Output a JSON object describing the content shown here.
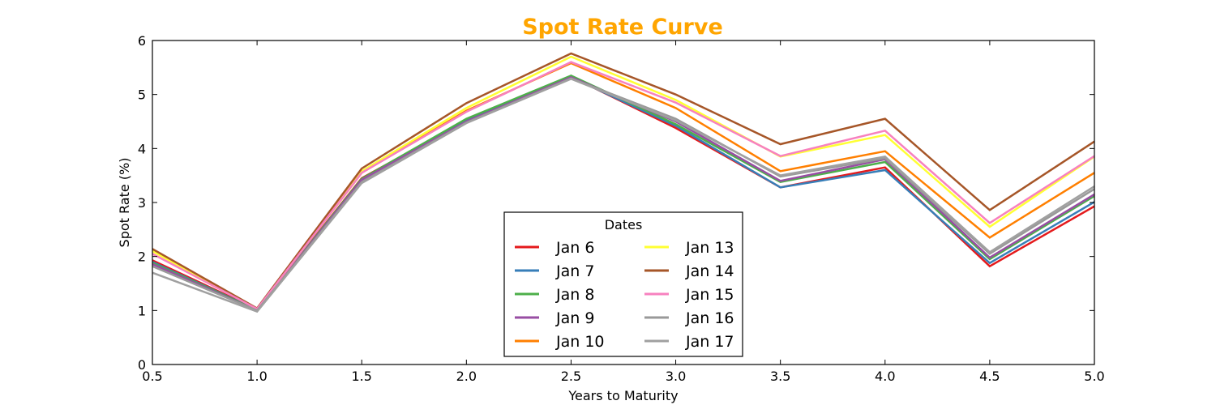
{
  "chart_data": {
    "type": "line",
    "title": "Spot Rate Curve",
    "title_color": "#FFA500",
    "xlabel": "Years to Maturity",
    "ylabel": "Spot Rate (%)",
    "xlim": [
      0.5,
      5.0
    ],
    "ylim": [
      0,
      6
    ],
    "xticks": [
      "0.5",
      "1.0",
      "1.5",
      "2.0",
      "2.5",
      "3.0",
      "3.5",
      "4.0",
      "4.5",
      "5.0"
    ],
    "yticks": [
      "0",
      "1",
      "2",
      "3",
      "4",
      "5",
      "6"
    ],
    "grid": false,
    "legend": {
      "title": "Dates",
      "placement": "lower-center",
      "columns": 2
    },
    "x": [
      0.5,
      1.0,
      1.5,
      2.0,
      2.5,
      3.0,
      3.5,
      4.0,
      4.5,
      5.0
    ],
    "series": [
      {
        "name": "Jan 6",
        "color": "#E41A1C",
        "values": [
          1.93,
          1.02,
          3.45,
          4.52,
          5.33,
          4.38,
          3.28,
          3.65,
          1.82,
          2.93
        ]
      },
      {
        "name": "Jan 7",
        "color": "#377EB8",
        "values": [
          1.9,
          1.01,
          3.43,
          4.51,
          5.32,
          4.42,
          3.28,
          3.6,
          1.88,
          3.01
        ]
      },
      {
        "name": "Jan 8",
        "color": "#4DAF4A",
        "values": [
          1.88,
          1.01,
          3.44,
          4.55,
          5.35,
          4.45,
          3.38,
          3.75,
          1.95,
          3.12
        ]
      },
      {
        "name": "Jan 9",
        "color": "#984EA3",
        "values": [
          1.86,
          1.0,
          3.42,
          4.5,
          5.32,
          4.5,
          3.4,
          3.8,
          1.98,
          3.15
        ]
      },
      {
        "name": "Jan 10",
        "color": "#FF7F00",
        "values": [
          2.12,
          1.03,
          3.55,
          4.7,
          5.58,
          4.75,
          3.58,
          3.95,
          2.35,
          3.55
        ]
      },
      {
        "name": "Jan 13",
        "color": "#FFFF33",
        "values": [
          2.1,
          1.03,
          3.58,
          4.75,
          5.7,
          4.9,
          3.85,
          4.25,
          2.55,
          3.85
        ]
      },
      {
        "name": "Jan 14",
        "color": "#A65628",
        "values": [
          2.14,
          1.04,
          3.63,
          4.84,
          5.76,
          5.0,
          4.08,
          4.55,
          2.86,
          4.13
        ]
      },
      {
        "name": "Jan 15",
        "color": "#F781BF",
        "values": [
          2.05,
          1.03,
          3.55,
          4.68,
          5.6,
          4.85,
          3.86,
          4.33,
          2.62,
          3.86
        ]
      },
      {
        "name": "Jan 16",
        "color": "#999999",
        "values": [
          1.82,
          1.0,
          3.38,
          4.48,
          5.3,
          4.55,
          3.48,
          3.82,
          2.05,
          3.25
        ]
      },
      {
        "name": "Jan 17",
        "color": "#A0A0A0",
        "values": [
          1.7,
          0.98,
          3.36,
          4.47,
          5.29,
          4.52,
          3.5,
          3.85,
          2.08,
          3.3
        ]
      }
    ]
  }
}
